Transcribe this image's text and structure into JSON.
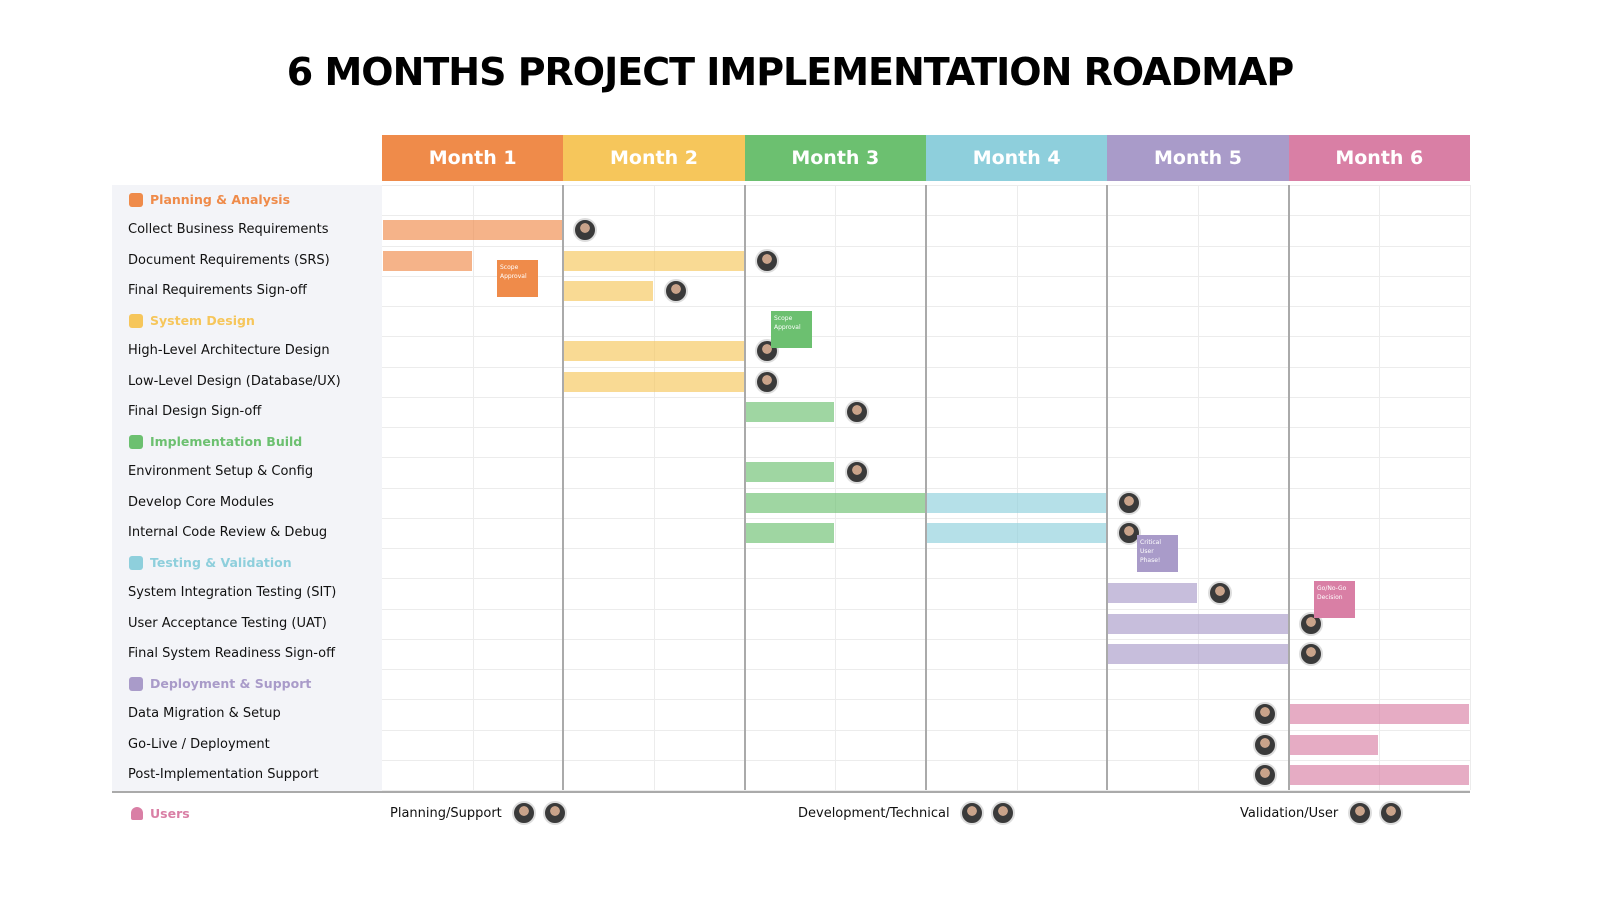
{
  "title": "6 MONTHS PROJECT IMPLEMENTATION ROADMAP",
  "months": [
    {
      "label": "Month 1",
      "color": "#ef8b4a"
    },
    {
      "label": "Month 2",
      "color": "#f6c65b"
    },
    {
      "label": "Month 3",
      "color": "#6cc070"
    },
    {
      "label": "Month 4",
      "color": "#8ecfdc"
    },
    {
      "label": "Month 5",
      "color": "#a99bc9"
    },
    {
      "label": "Month 6",
      "color": "#d97fa5"
    }
  ],
  "groups": [
    {
      "name": "Planning & Analysis",
      "color": "#ef8b4a",
      "tasks": [
        {
          "name": "Collect Business Requirements",
          "bars": [
            [
              0,
              1
            ]
          ]
        },
        {
          "name": "Document Requirements (SRS)",
          "bars": [
            [
              0,
              0.5
            ],
            [
              1,
              2
            ]
          ]
        },
        {
          "name": "Final Requirements Sign-off",
          "bars": [
            [
              1,
              1.5
            ]
          ]
        }
      ]
    },
    {
      "name": "System Design",
      "color": "#f6c65b",
      "tasks": [
        {
          "name": "High-Level Architecture Design",
          "bars": [
            [
              1,
              2
            ]
          ]
        },
        {
          "name": "Low-Level Design (Database/UX)",
          "bars": [
            [
              1,
              2
            ]
          ]
        },
        {
          "name": "Final Design Sign-off",
          "bars": [
            [
              2,
              2.5
            ]
          ]
        }
      ]
    },
    {
      "name": "Implementation Build",
      "color": "#6cc070",
      "tasks": [
        {
          "name": "Environment Setup & Config",
          "bars": [
            [
              2,
              2.5
            ]
          ]
        },
        {
          "name": "Develop Core Modules",
          "bars": [
            [
              2,
              3
            ],
            [
              3,
              4
            ]
          ]
        },
        {
          "name": "Internal Code Review & Debug",
          "bars": [
            [
              2,
              2.5
            ],
            [
              3,
              4
            ]
          ]
        }
      ]
    },
    {
      "name": "Testing & Validation",
      "color": "#8ecfdc",
      "tasks": [
        {
          "name": "System Integration Testing (SIT)",
          "bars": [
            [
              4,
              4.5
            ]
          ]
        },
        {
          "name": "User Acceptance Testing (UAT)",
          "bars": [
            [
              4,
              5
            ]
          ]
        },
        {
          "name": "Final System Readiness Sign-off",
          "bars": [
            [
              4,
              5
            ]
          ]
        }
      ]
    },
    {
      "name": "Deployment & Support",
      "color": "#a99bc9",
      "tasks": [
        {
          "name": "Data Migration & Setup",
          "bars": [
            [
              5,
              6
            ]
          ]
        },
        {
          "name": "Go-Live / Deployment",
          "bars": [
            [
              5,
              5.5
            ]
          ]
        },
        {
          "name": "Post-Implementation Support",
          "bars": [
            [
              5,
              6
            ]
          ]
        }
      ]
    }
  ],
  "milestones": [
    {
      "label": "Scope Approval",
      "color": "#ef8b4a"
    },
    {
      "label": "Scope Approval",
      "color": "#6cc070"
    },
    {
      "label": "Critical User Phase!",
      "color": "#a99bc9"
    },
    {
      "label": "Go/No-Go Decision",
      "color": "#d97fa5"
    }
  ],
  "users": {
    "label": "Users",
    "color": "#d97fa5",
    "roles": [
      "Planning/Support",
      "Development/Technical",
      "Validation/User"
    ]
  }
}
